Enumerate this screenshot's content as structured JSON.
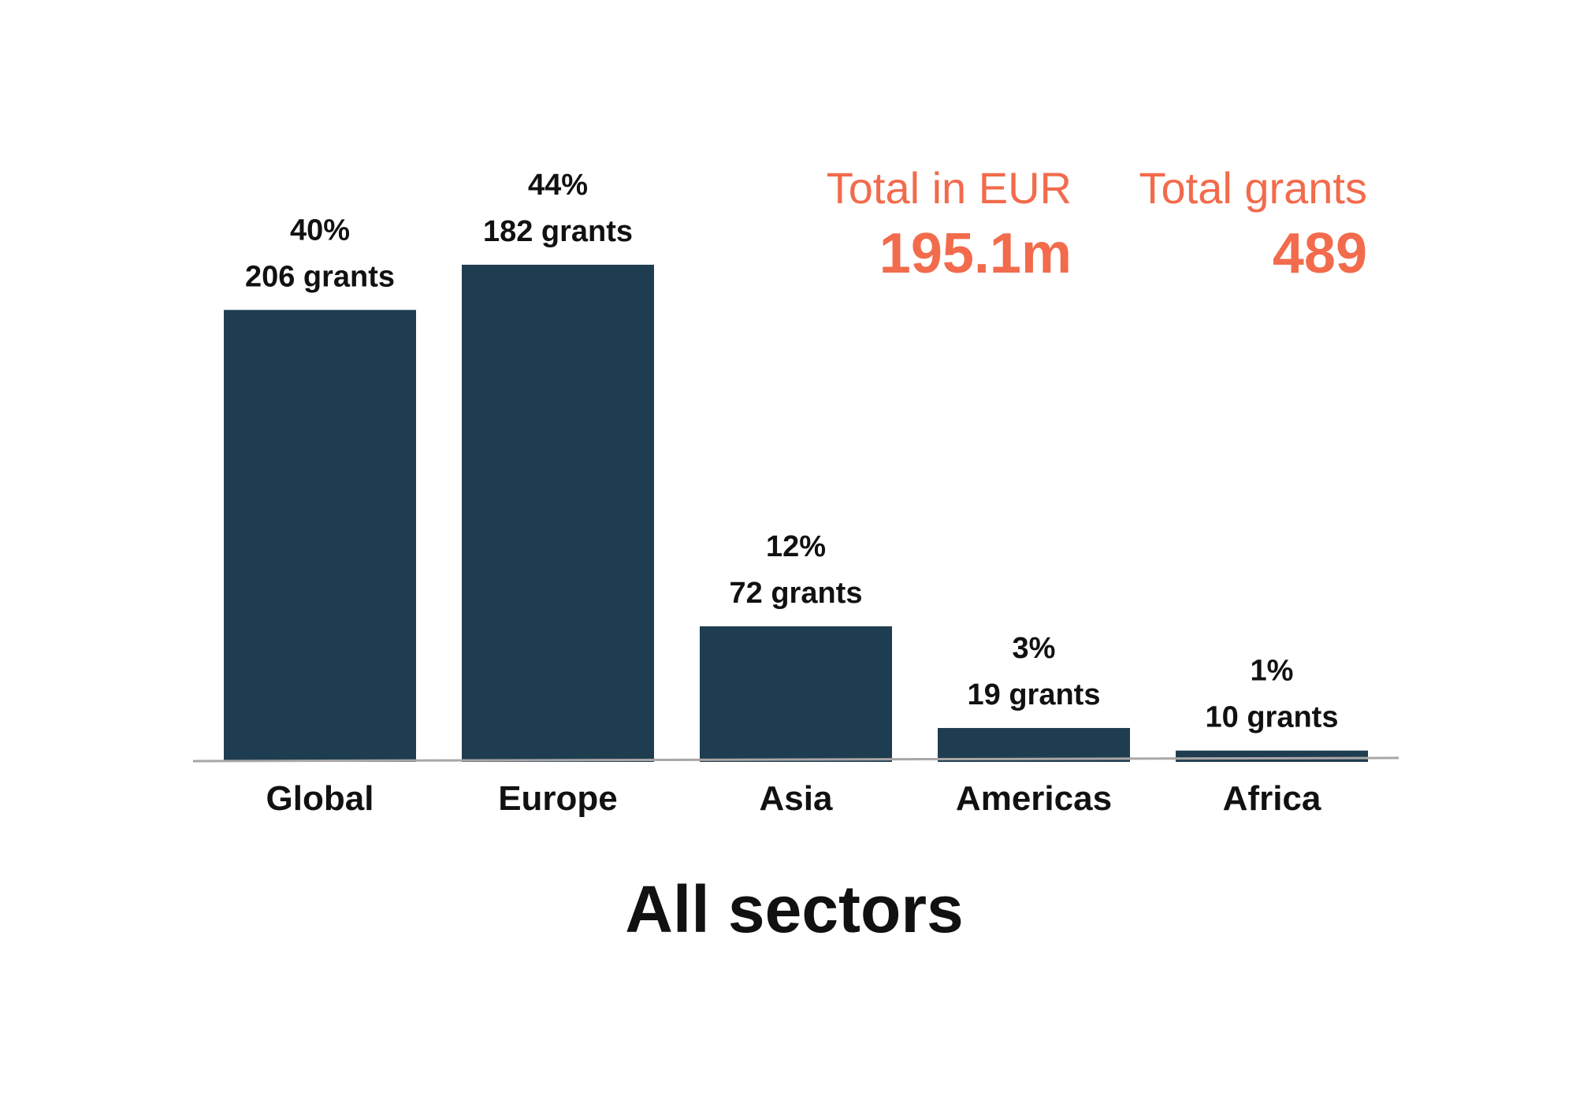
{
  "colors": {
    "bar": "#1f3d50",
    "accent": "#f26b4c",
    "baseline": "#aaa6a6",
    "text": "#111111"
  },
  "stats": {
    "total_eur_label": "Total in EUR",
    "total_eur_value": "195.1m",
    "total_grants_label": "Total grants",
    "total_grants_value": "489"
  },
  "chart_data": {
    "type": "bar",
    "title": "All sectors",
    "xlabel": "",
    "ylabel": "",
    "categories": [
      "Global",
      "Europe",
      "Asia",
      "Americas",
      "Africa"
    ],
    "values": [
      40,
      44,
      12,
      3,
      1
    ],
    "value_unit": "%",
    "grants": [
      206,
      182,
      72,
      19,
      10
    ],
    "percent_labels": [
      "40%",
      "44%",
      "12%",
      "3%",
      "1%"
    ],
    "grant_labels": [
      "206 grants",
      "182 grants",
      "72 grants",
      "19 grants",
      "10 grants"
    ],
    "ylim": [
      0,
      44
    ],
    "grid": false,
    "legend": "none"
  }
}
